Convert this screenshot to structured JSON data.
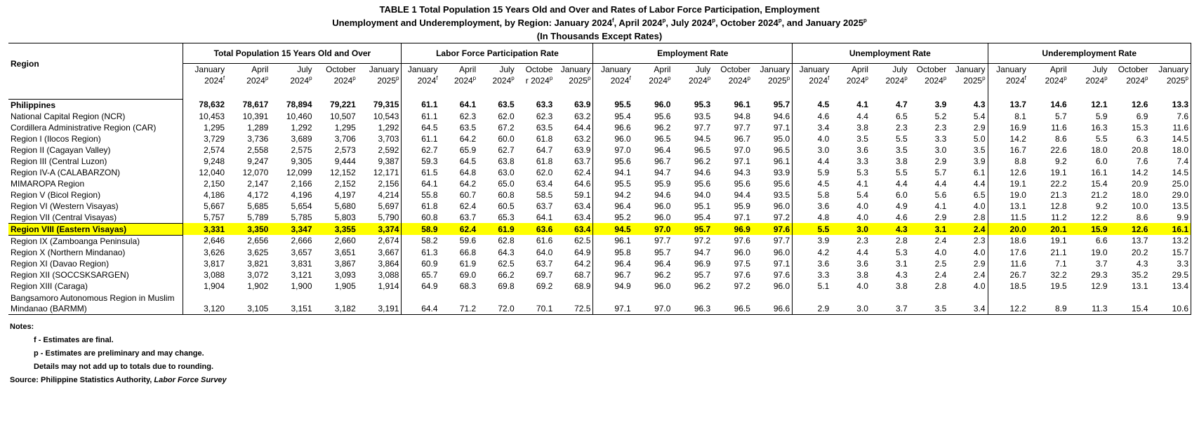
{
  "title": {
    "line1": "TABLE 1   Total Population 15 Years Old and Over and Rates of Labor Force Participation, Employment",
    "line2_prefix": "Unemployment  and Underemployment, by Region: January 2024",
    "line2_parts": [
      {
        "sup": "f",
        "text": ", April 2024"
      },
      {
        "sup": "p",
        "text": ", July 2024"
      },
      {
        "sup": "p",
        "text": ", October 2024"
      },
      {
        "sup": "p",
        "text": ", and January 2025"
      },
      {
        "sup": "p",
        "text": ""
      }
    ],
    "line3": "(In Thousands Except Rates)"
  },
  "table": {
    "region_header": "Region",
    "groups": [
      {
        "label": "Total Population 15 Years Old  and Over",
        "cols": [
          [
            "January",
            "2024",
            "f"
          ],
          [
            "April",
            "2024",
            "p"
          ],
          [
            "July",
            "2024",
            "p"
          ],
          [
            "October",
            "2024",
            "p"
          ],
          [
            "January",
            "2025",
            "p"
          ]
        ]
      },
      {
        "label": "Labor Force Participation Rate",
        "cols": [
          [
            "January",
            "2024",
            "f"
          ],
          [
            "April",
            "2024",
            "p"
          ],
          [
            "July",
            "2024",
            "p"
          ],
          [
            "Octobe",
            "r 2024",
            "p"
          ],
          [
            "January",
            "2025",
            "p"
          ]
        ]
      },
      {
        "label": "Employment Rate",
        "cols": [
          [
            "January",
            "2024",
            "f"
          ],
          [
            "April",
            "2024",
            "p"
          ],
          [
            "July",
            "2024",
            "p"
          ],
          [
            "October",
            "2024",
            "p"
          ],
          [
            "January",
            "2025",
            "p"
          ]
        ]
      },
      {
        "label": "Unemployment Rate",
        "cols": [
          [
            "January",
            "2024",
            "f"
          ],
          [
            "April",
            "2024",
            "p"
          ],
          [
            "July",
            "2024",
            "p"
          ],
          [
            "October",
            "2024",
            "p"
          ],
          [
            "January",
            "2025",
            "p"
          ]
        ]
      },
      {
        "label": "Underemployment Rate",
        "cols": [
          [
            "January",
            "2024",
            "f"
          ],
          [
            "April",
            "2024",
            "p"
          ],
          [
            "July",
            "2024",
            "p"
          ],
          [
            "October",
            "2024",
            "p"
          ],
          [
            "January",
            "2025",
            "p"
          ]
        ]
      }
    ],
    "rows": [
      {
        "region": "Philippines",
        "style": "total",
        "values": [
          "78,632",
          "78,617",
          "78,894",
          "79,221",
          "79,315",
          "61.1",
          "64.1",
          "63.5",
          "63.3",
          "63.9",
          "95.5",
          "96.0",
          "95.3",
          "96.1",
          "95.7",
          "4.5",
          "4.1",
          "4.7",
          "3.9",
          "4.3",
          "13.7",
          "14.6",
          "12.1",
          "12.6",
          "13.3"
        ]
      },
      {
        "region": "National Capital Region (NCR)",
        "values": [
          "10,453",
          "10,391",
          "10,460",
          "10,507",
          "10,543",
          "61.1",
          "62.3",
          "62.0",
          "62.3",
          "63.2",
          "95.4",
          "95.6",
          "93.5",
          "94.8",
          "94.6",
          "4.6",
          "4.4",
          "6.5",
          "5.2",
          "5.4",
          "8.1",
          "5.7",
          "5.9",
          "6.9",
          "7.6"
        ]
      },
      {
        "region": "Cordillera Administrative Region (CAR)",
        "values": [
          "1,295",
          "1,289",
          "1,292",
          "1,295",
          "1,292",
          "64.5",
          "63.5",
          "67.2",
          "63.5",
          "64.4",
          "96.6",
          "96.2",
          "97.7",
          "97.7",
          "97.1",
          "3.4",
          "3.8",
          "2.3",
          "2.3",
          "2.9",
          "16.9",
          "11.6",
          "16.3",
          "15.3",
          "11.6"
        ]
      },
      {
        "region": "Region I (Ilocos Region)",
        "values": [
          "3,729",
          "3,736",
          "3,689",
          "3,706",
          "3,703",
          "61.1",
          "64.2",
          "60.0",
          "61.8",
          "63.2",
          "96.0",
          "96.5",
          "94.5",
          "96.7",
          "95.0",
          "4.0",
          "3.5",
          "5.5",
          "3.3",
          "5.0",
          "14.2",
          "8.6",
          "5.5",
          "6.3",
          "14.5"
        ]
      },
      {
        "region": "Region II (Cagayan Valley)",
        "values": [
          "2,574",
          "2,558",
          "2,575",
          "2,573",
          "2,592",
          "62.7",
          "65.9",
          "62.7",
          "64.7",
          "63.9",
          "97.0",
          "96.4",
          "96.5",
          "97.0",
          "96.5",
          "3.0",
          "3.6",
          "3.5",
          "3.0",
          "3.5",
          "16.7",
          "22.6",
          "18.0",
          "20.8",
          "18.0"
        ]
      },
      {
        "region": "Region III (Central Luzon)",
        "values": [
          "9,248",
          "9,247",
          "9,305",
          "9,444",
          "9,387",
          "59.3",
          "64.5",
          "63.8",
          "61.8",
          "63.7",
          "95.6",
          "96.7",
          "96.2",
          "97.1",
          "96.1",
          "4.4",
          "3.3",
          "3.8",
          "2.9",
          "3.9",
          "8.8",
          "9.2",
          "6.0",
          "7.6",
          "7.4"
        ]
      },
      {
        "region": "Region IV-A  (CALABARZON)",
        "values": [
          "12,040",
          "12,070",
          "12,099",
          "12,152",
          "12,171",
          "61.5",
          "64.8",
          "63.0",
          "62.0",
          "62.4",
          "94.1",
          "94.7",
          "94.6",
          "94.3",
          "93.9",
          "5.9",
          "5.3",
          "5.5",
          "5.7",
          "6.1",
          "12.6",
          "19.1",
          "16.1",
          "14.2",
          "14.5"
        ]
      },
      {
        "region": "MIMAROPA Region",
        "values": [
          "2,150",
          "2,147",
          "2,166",
          "2,152",
          "2,156",
          "64.1",
          "64.2",
          "65.0",
          "63.4",
          "64.6",
          "95.5",
          "95.9",
          "95.6",
          "95.6",
          "95.6",
          "4.5",
          "4.1",
          "4.4",
          "4.4",
          "4.4",
          "19.1",
          "22.2",
          "15.4",
          "20.9",
          "25.0"
        ]
      },
      {
        "region": "Region V (Bicol Region)",
        "values": [
          "4,186",
          "4,172",
          "4,196",
          "4,197",
          "4,214",
          "55.8",
          "60.7",
          "60.8",
          "58.5",
          "59.1",
          "94.2",
          "94.6",
          "94.0",
          "94.4",
          "93.5",
          "5.8",
          "5.4",
          "6.0",
          "5.6",
          "6.5",
          "19.0",
          "21.3",
          "21.2",
          "18.0",
          "29.0"
        ]
      },
      {
        "region": "Region VI (Western Visayas)",
        "values": [
          "5,667",
          "5,685",
          "5,654",
          "5,680",
          "5,697",
          "61.8",
          "62.4",
          "60.5",
          "63.7",
          "63.4",
          "96.4",
          "96.0",
          "95.1",
          "95.9",
          "96.0",
          "3.6",
          "4.0",
          "4.9",
          "4.1",
          "4.0",
          "13.1",
          "12.8",
          "9.2",
          "10.0",
          "13.5"
        ]
      },
      {
        "region": "Region VII (Central Visayas)",
        "values": [
          "5,757",
          "5,789",
          "5,785",
          "5,803",
          "5,790",
          "60.8",
          "63.7",
          "65.3",
          "64.1",
          "63.4",
          "95.2",
          "96.0",
          "95.4",
          "97.1",
          "97.2",
          "4.8",
          "4.0",
          "4.6",
          "2.9",
          "2.8",
          "11.5",
          "11.2",
          "12.2",
          "8.6",
          "9.9"
        ]
      },
      {
        "region": "Region VIII (Eastern Visayas)",
        "style": "hl",
        "values": [
          "3,331",
          "3,350",
          "3,347",
          "3,355",
          "3,374",
          "58.9",
          "62.4",
          "61.9",
          "63.6",
          "63.4",
          "94.5",
          "97.0",
          "95.7",
          "96.9",
          "97.6",
          "5.5",
          "3.0",
          "4.3",
          "3.1",
          "2.4",
          "20.0",
          "20.1",
          "15.9",
          "12.6",
          "16.1"
        ]
      },
      {
        "region": "Region IX (Zamboanga Peninsula)",
        "values": [
          "2,646",
          "2,656",
          "2,666",
          "2,660",
          "2,674",
          "58.2",
          "59.6",
          "62.8",
          "61.6",
          "62.5",
          "96.1",
          "97.7",
          "97.2",
          "97.6",
          "97.7",
          "3.9",
          "2.3",
          "2.8",
          "2.4",
          "2.3",
          "18.6",
          "19.1",
          "6.6",
          "13.7",
          "13.2"
        ]
      },
      {
        "region": "Region X (Northern Mindanao)",
        "values": [
          "3,626",
          "3,625",
          "3,657",
          "3,651",
          "3,667",
          "61.3",
          "66.8",
          "64.3",
          "64.0",
          "64.9",
          "95.8",
          "95.7",
          "94.7",
          "96.0",
          "96.0",
          "4.2",
          "4.4",
          "5.3",
          "4.0",
          "4.0",
          "17.6",
          "21.1",
          "19.0",
          "20.2",
          "15.7"
        ]
      },
      {
        "region": "Region XI (Davao Region)",
        "values": [
          "3,817",
          "3,821",
          "3,831",
          "3,867",
          "3,864",
          "60.9",
          "61.9",
          "62.5",
          "63.7",
          "64.2",
          "96.4",
          "96.4",
          "96.9",
          "97.5",
          "97.1",
          "3.6",
          "3.6",
          "3.1",
          "2.5",
          "2.9",
          "11.6",
          "7.1",
          "3.7",
          "4.3",
          "3.3"
        ]
      },
      {
        "region": "Region XII (SOCCSKSARGEN)",
        "values": [
          "3,088",
          "3,072",
          "3,121",
          "3,093",
          "3,088",
          "65.7",
          "69.0",
          "66.2",
          "69.7",
          "68.7",
          "96.7",
          "96.2",
          "95.7",
          "97.6",
          "97.6",
          "3.3",
          "3.8",
          "4.3",
          "2.4",
          "2.4",
          "26.7",
          "32.2",
          "29.3",
          "35.2",
          "29.5"
        ]
      },
      {
        "region": "Region XIII (Caraga)",
        "values": [
          "1,904",
          "1,902",
          "1,900",
          "1,905",
          "1,914",
          "64.9",
          "68.3",
          "69.8",
          "69.2",
          "68.9",
          "94.9",
          "96.0",
          "96.2",
          "97.2",
          "96.0",
          "5.1",
          "4.0",
          "3.8",
          "2.8",
          "4.0",
          "18.5",
          "19.5",
          "12.9",
          "13.1",
          "13.4"
        ]
      },
      {
        "region": "Bangsamoro Autonomous Region in Muslim Mindanao (BARMM)",
        "style": "tall",
        "values": [
          "3,120",
          "3,105",
          "3,151",
          "3,182",
          "3,191",
          "64.4",
          "71.2",
          "72.0",
          "70.1",
          "72.5",
          "97.1",
          "97.0",
          "96.3",
          "96.5",
          "96.6",
          "2.9",
          "3.0",
          "3.7",
          "3.5",
          "3.4",
          "12.2",
          "8.9",
          "11.3",
          "15.4",
          "10.6"
        ]
      }
    ]
  },
  "notes": {
    "heading": "Notes:",
    "f_note": "f - Estimates are final.",
    "p_note": "p - Estimates are preliminary and may change.",
    "rounding_note": "Details may not add up to totals due to rounding.",
    "source_prefix": "Source: Philippine Statistics Authority, ",
    "source_italic": "Labor Force Survey"
  },
  "colors": {
    "highlight": "#ffff00",
    "text": "#000000"
  }
}
